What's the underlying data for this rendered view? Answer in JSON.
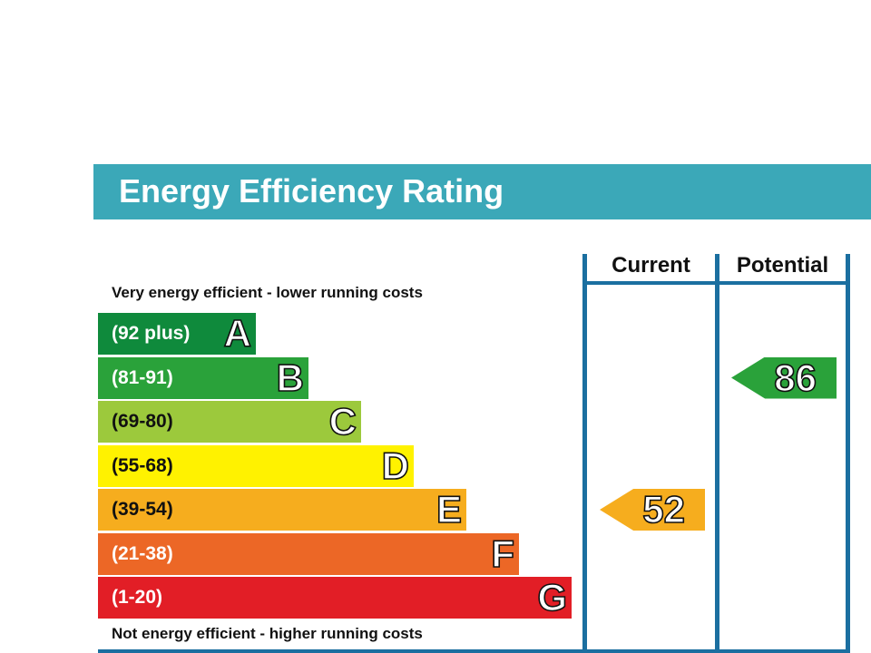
{
  "title": "Energy Efficiency Rating",
  "columns": {
    "current": "Current",
    "potential": "Potential"
  },
  "top_note": "Very energy efficient - lower running costs",
  "bottom_note": "Not energy efficient - higher running costs",
  "colors": {
    "header": "#3ba8b8",
    "lines": "#1b6fa0",
    "band_A": "#0f8a3c",
    "band_B": "#2aa23a",
    "band_C": "#9cc93c",
    "band_D": "#fff200",
    "band_E": "#f6ad1e",
    "band_F": "#ec6726",
    "band_G": "#e21e26"
  },
  "chart_data": {
    "type": "bar",
    "title": "Energy Efficiency Rating",
    "categories": [
      "A",
      "B",
      "C",
      "D",
      "E",
      "F",
      "G"
    ],
    "ranges": [
      "(92 plus)",
      "(81-91)",
      "(69-80)",
      "(55-68)",
      "(39-54)",
      "(21-38)",
      "(1-20)"
    ],
    "bands": [
      {
        "letter": "A",
        "range": "(92 plus)",
        "color": "#0f8a3c"
      },
      {
        "letter": "B",
        "range": "(81-91)",
        "color": "#2aa23a"
      },
      {
        "letter": "C",
        "range": "(69-80)",
        "color": "#9cc93c"
      },
      {
        "letter": "D",
        "range": "(55-68)",
        "color": "#fff200"
      },
      {
        "letter": "E",
        "range": "(39-54)",
        "color": "#f6ad1e"
      },
      {
        "letter": "F",
        "range": "(21-38)",
        "color": "#ec6726"
      },
      {
        "letter": "G",
        "range": "(1-20)",
        "color": "#e21e26"
      }
    ],
    "current": {
      "value": 52,
      "band": "E",
      "color": "#f6ad1e"
    },
    "potential": {
      "value": 86,
      "band": "B",
      "color": "#2aa23a"
    }
  }
}
